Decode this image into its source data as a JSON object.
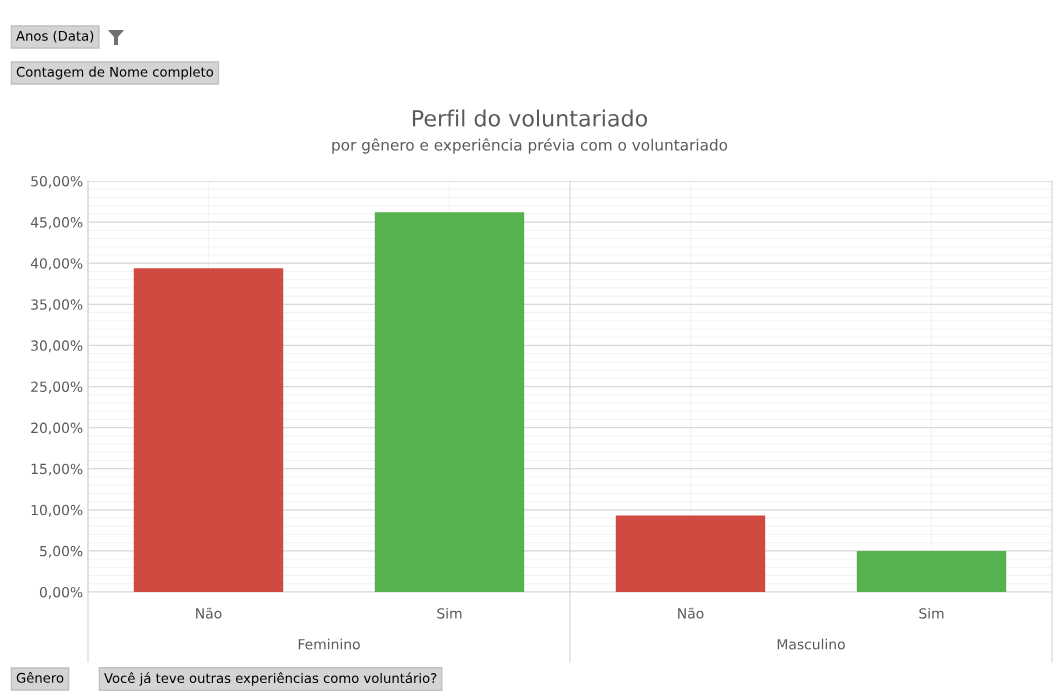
{
  "chart_data": {
    "type": "bar",
    "title": "Perfil do voluntariado",
    "subtitle": "por gênero e experiência prévia com o voluntariado",
    "categories": [
      "Não",
      "Sim",
      "Não",
      "Sim"
    ],
    "values": [
      39.4,
      46.2,
      9.3,
      5.0
    ],
    "colors": [
      "#d04a42",
      "#55b24e",
      "#d04a42",
      "#55b24e"
    ],
    "ylim": [
      0,
      50
    ],
    "yticks": [
      {
        "value": 0,
        "label": "0,00%"
      },
      {
        "value": 5,
        "label": "5,00%"
      },
      {
        "value": 10,
        "label": "10,00%"
      },
      {
        "value": 15,
        "label": "15,00%"
      },
      {
        "value": 20,
        "label": "20,00%"
      },
      {
        "value": 25,
        "label": "25,00%"
      },
      {
        "value": 30,
        "label": "30,00%"
      },
      {
        "value": 35,
        "label": "35,00%"
      },
      {
        "value": 40,
        "label": "40,00%"
      },
      {
        "value": 45,
        "label": "45,00%"
      },
      {
        "value": 50,
        "label": "50,00%"
      }
    ],
    "grid": true,
    "annotations": [
      "Feminino",
      "Masculino",
      "Anos (Data)",
      "Contagem de Nome completo",
      "Gênero",
      "Você já teve outras experiências como voluntário?"
    ]
  }
}
